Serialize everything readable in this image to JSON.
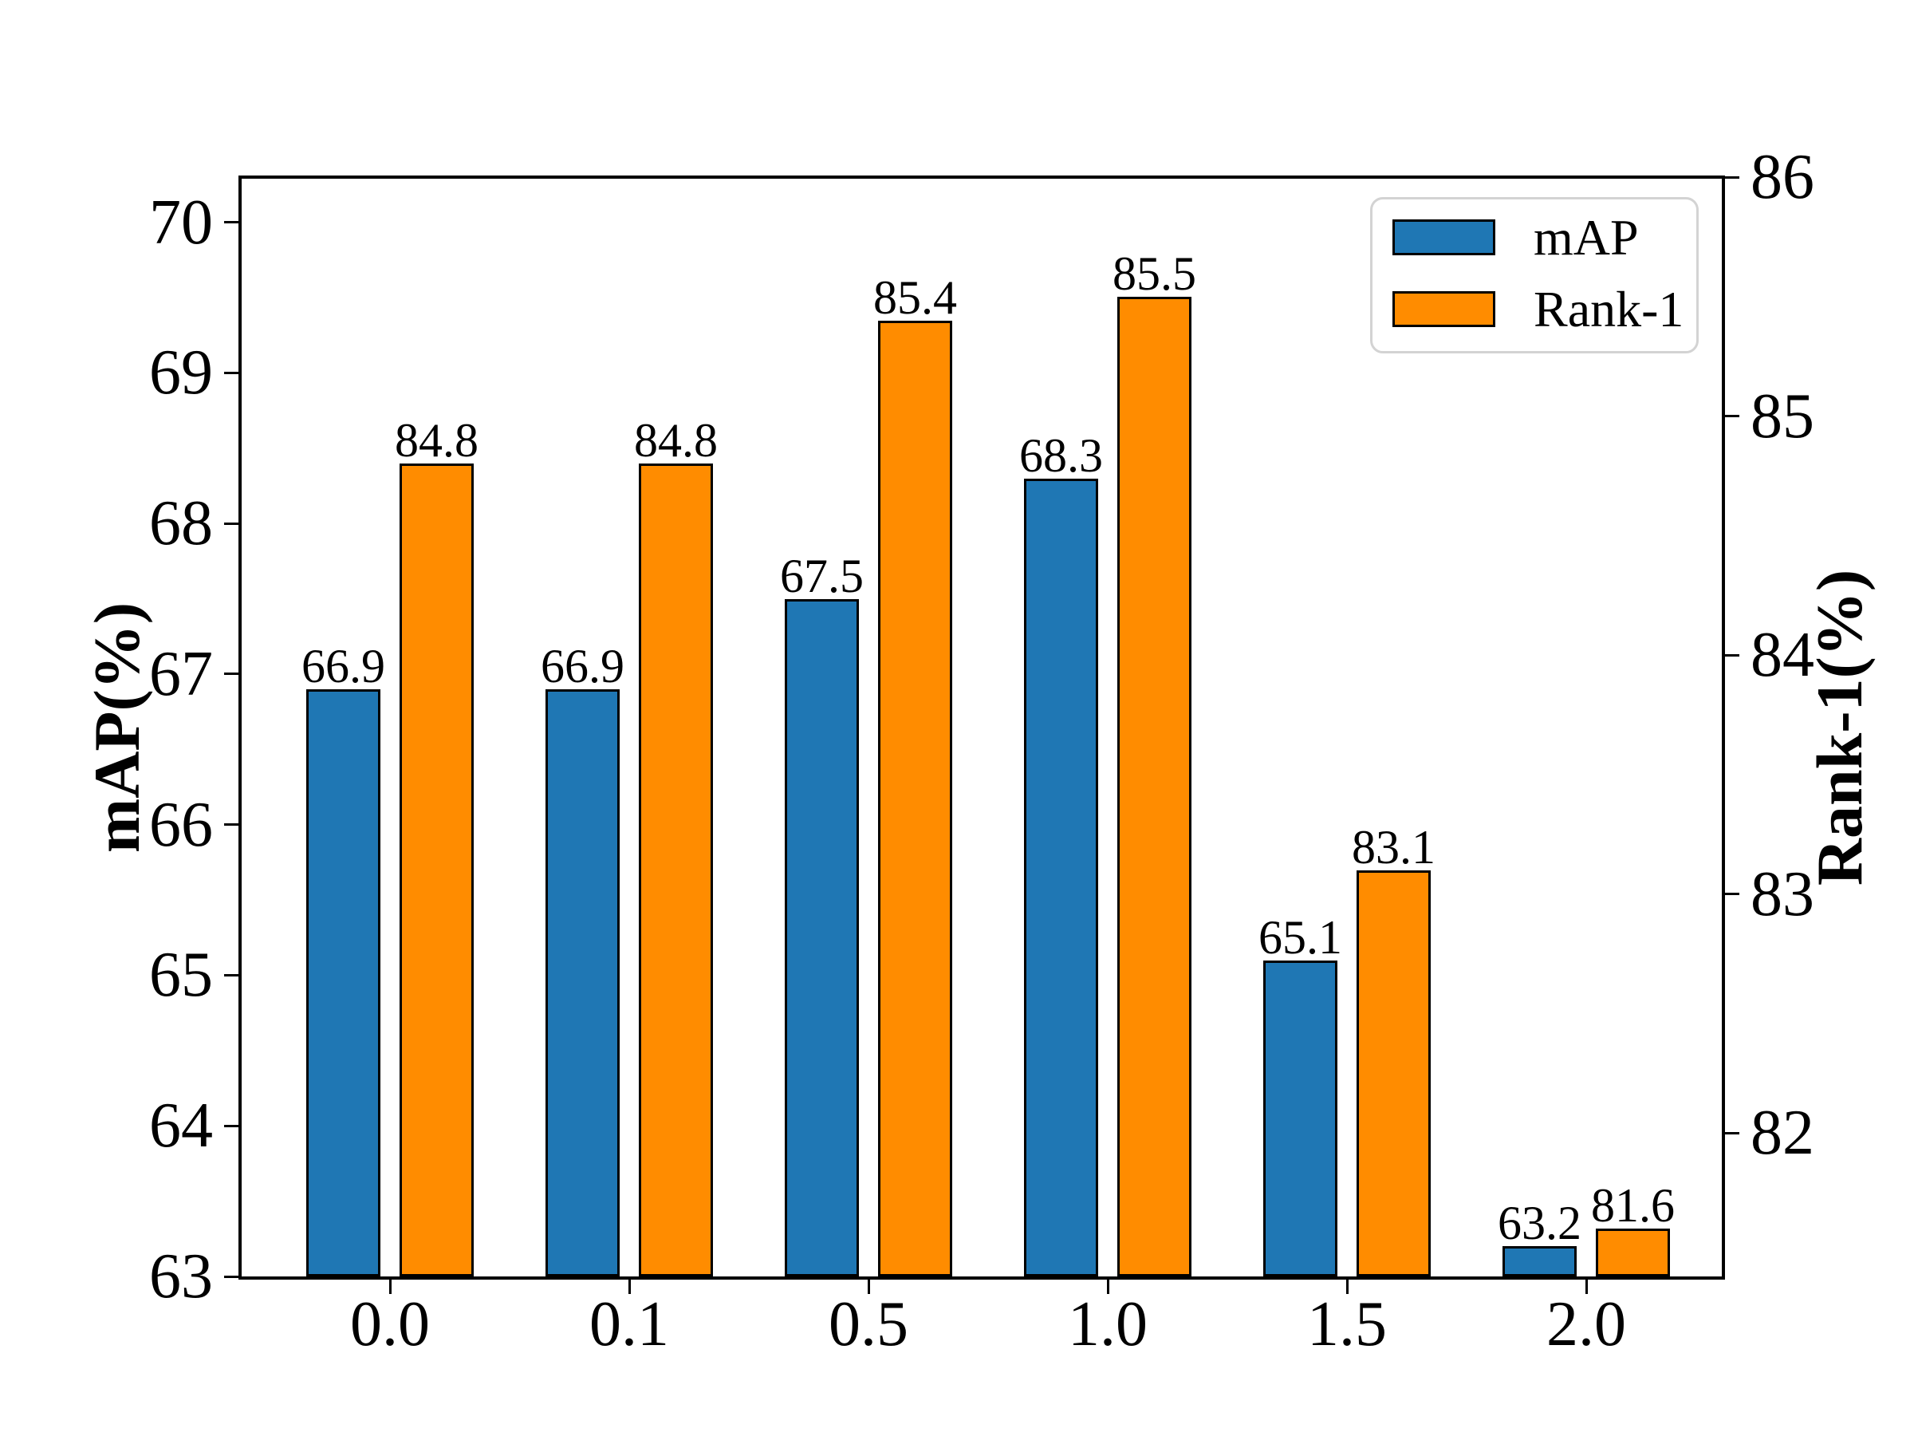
{
  "chart_data": {
    "type": "bar",
    "title": "",
    "categories": [
      "0.0",
      "0.1",
      "0.5",
      "1.0",
      "1.5",
      "2.0"
    ],
    "series": [
      {
        "name": "mAP",
        "axis": "left",
        "color": "#1f77b4",
        "values": [
          66.9,
          66.9,
          67.5,
          68.3,
          65.1,
          63.2
        ],
        "labels": [
          "66.9",
          "66.9",
          "67.5",
          "68.3",
          "65.1",
          "63.2"
        ]
      },
      {
        "name": "Rank-1",
        "axis": "right",
        "color": "#ff8c00",
        "values": [
          84.8,
          84.8,
          85.4,
          85.5,
          83.1,
          81.6
        ],
        "labels": [
          "84.8",
          "84.8",
          "85.4",
          "85.5",
          "83.1",
          "81.6"
        ]
      }
    ],
    "left_axis": {
      "label": "mAP(%)",
      "min": 63.0,
      "max": 70.3,
      "ticks": [
        63,
        64,
        65,
        66,
        67,
        68,
        69,
        70
      ]
    },
    "right_axis": {
      "label": "Rank-1(%)",
      "min": 81.4,
      "max": 86.0,
      "ticks": [
        82,
        83,
        84,
        85,
        86
      ]
    },
    "legend": {
      "position": "upper right",
      "entries": [
        "mAP",
        "Rank-1"
      ]
    },
    "grid": false,
    "bar_edge_color": "#000000",
    "background_color": "#ffffff"
  }
}
